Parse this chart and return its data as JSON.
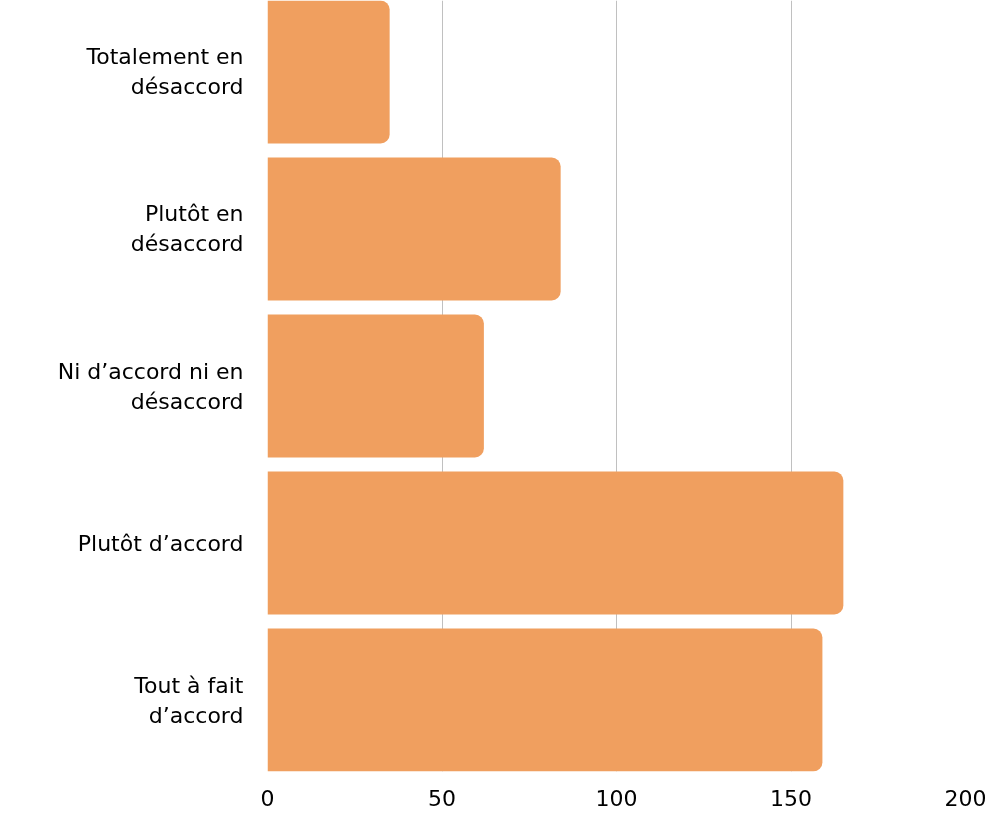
{
  "chart_data": {
    "type": "bar",
    "orientation": "horizontal",
    "categories": [
      "Totalement en désaccord",
      "Plutôt en désaccord",
      "Ni d’accord ni en désaccord",
      "Plutôt d’accord",
      "Tout à fait d’accord"
    ],
    "values": [
      35,
      84,
      62,
      165,
      159
    ],
    "color": "#f09f5f",
    "xlim": [
      0,
      200
    ],
    "xticks": [
      0,
      50,
      100,
      150,
      200
    ],
    "grid": "x"
  }
}
